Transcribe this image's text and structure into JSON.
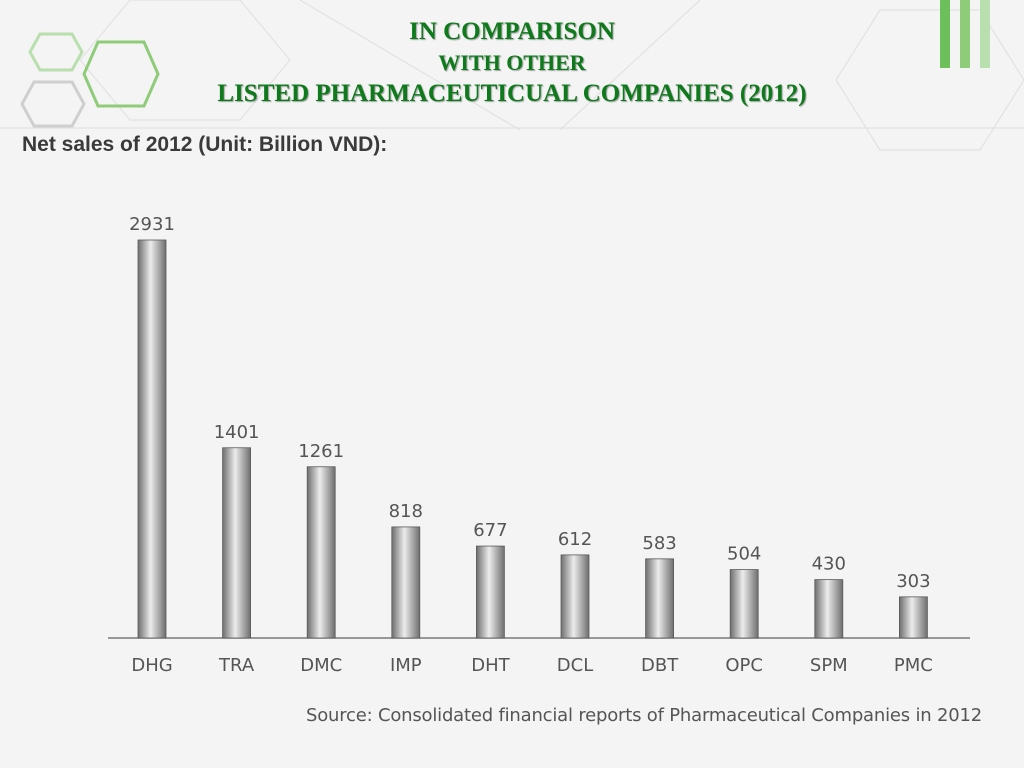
{
  "header": {
    "title_line1": "IN COMPARISON",
    "title_line2": "WITH OTHER",
    "title_line3": "LISTED PHARMACEUTICUAL COMPANIES (2012)"
  },
  "subtitle": "Net sales of 2012 (Unit: Billion VND):",
  "source": "Source: Consolidated financial reports of Pharmaceutical Companies in 2012",
  "colors": {
    "title": "#0e7a1c",
    "accent_green": "#6cbf5a",
    "bar_dark": "#6e6e6e",
    "bar_light": "#ececec"
  },
  "chart_data": {
    "type": "bar",
    "title": "Net sales of 2012 (Unit: Billion VND):",
    "categories": [
      "DHG",
      "TRA",
      "DMC",
      "IMP",
      "DHT",
      "DCL",
      "DBT",
      "OPC",
      "SPM",
      "PMC"
    ],
    "values": [
      2931,
      1401,
      1261,
      818,
      677,
      612,
      583,
      504,
      430,
      303
    ],
    "data_labels": [
      "2931",
      "1401",
      "1261",
      "818",
      "677",
      "612",
      "583",
      "504",
      "430",
      "303"
    ],
    "ylim": [
      0,
      2931
    ],
    "xlabel": "",
    "ylabel": "",
    "grid": false,
    "legend": "none"
  }
}
